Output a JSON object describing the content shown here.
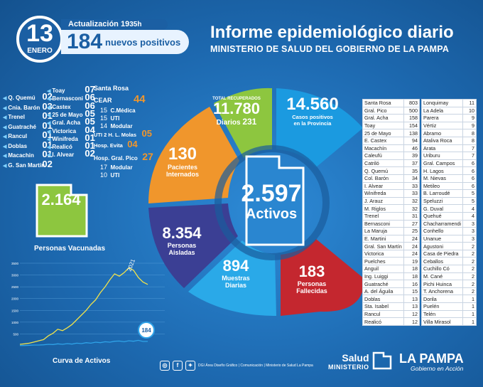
{
  "header": {
    "day": "13",
    "month": "ENERO",
    "update_label": "Actualización",
    "update_hour": "19",
    "update_min": "35h",
    "positives_number": "184",
    "positives_label": "nuevos positivos",
    "title": "Informe epidemiológico diario",
    "subtitle": "MINISTERIO DE SALUD DEL GOBIERNO DE LA PAMPA"
  },
  "left_list": [
    {
      "name": "Q. Quemú",
      "value": "02"
    },
    {
      "name": "Cnia. Barón",
      "value": "03"
    },
    {
      "name": "Trenel",
      "value": "01"
    },
    {
      "name": "Guatraché",
      "value": "01"
    },
    {
      "name": "Rancul",
      "value": "01"
    },
    {
      "name": "Doblas",
      "value": "01"
    },
    {
      "name": "Macachin",
      "value": "01"
    },
    {
      "name": "G. San Martín",
      "value": "02"
    }
  ],
  "mid_list": [
    {
      "name": "Toay",
      "value": "07"
    },
    {
      "name": "Bernasconi",
      "value": "06"
    },
    {
      "name": "Castex",
      "value": "06"
    },
    {
      "name": "25 de Mayo",
      "value": "05"
    },
    {
      "name": "Gral. Acha",
      "value": "05"
    },
    {
      "name": "Victorica",
      "value": "04"
    },
    {
      "name": "Winifreda",
      "value": "01"
    },
    {
      "name": "Realicó",
      "value": "01"
    },
    {
      "name": "I. Alvear",
      "value": "02"
    }
  ],
  "hospitals": {
    "santa_rosa": "Santa Rosa",
    "cear_label": "CEAR",
    "cear_value": "44",
    "cmedica_value": "15",
    "cmedica_label": "C.Médica",
    "uti1_value": "15",
    "uti1_label": "UTI",
    "modular1_value": "14",
    "modular1_label": "Modular",
    "molas_label": "UTI 2 H. L. Molas",
    "molas_value": "05",
    "evita_label": "Hosp. Evita",
    "evita_value": "04",
    "pico_label": "Hosp. Gral. Pico",
    "pico_value": "27",
    "modular2_value": "17",
    "modular2_label": "Modular",
    "uti2_value": "10",
    "uti2_label": "UTI"
  },
  "vaccinated": {
    "number": "2.164",
    "label": "Personas Vacunadas"
  },
  "curve": {
    "label": "Curva de Activos",
    "year_label": "2021",
    "last_value_label": "184"
  },
  "chart_data": {
    "type": "line",
    "title": "Curva de Activos",
    "y_tick_labels": [
      "3500",
      "3000",
      "2500",
      "2000",
      "1500",
      "1000",
      "500"
    ],
    "ylim": [
      0,
      3500
    ],
    "series": [
      {
        "values": [
          60,
          80,
          110,
          160,
          210,
          260,
          420,
          530,
          700,
          640,
          760,
          900,
          1100,
          1300,
          1500,
          1750,
          1950,
          2250,
          2500,
          2800,
          3050,
          2950,
          3100,
          3300,
          3200,
          2900,
          2700,
          2600
        ]
      },
      {
        "values": [
          10,
          10,
          20,
          30,
          30,
          40,
          60,
          50,
          80,
          60,
          90,
          70,
          110,
          90,
          130,
          110,
          150,
          130,
          170,
          150,
          190,
          200,
          170,
          210,
          190,
          230,
          180,
          184
        ]
      }
    ],
    "colors": [
      "#f2e34a",
      "#2fa3e8"
    ]
  },
  "donut": {
    "recovered_label": "TOTAL RECUPERADOS",
    "recovered_total": "11.780",
    "recovered_daily_label": "Diarios",
    "recovered_daily": "231",
    "cases_total": "14.560",
    "cases_label_1": "Casos positivos",
    "cases_label_2": "en la Provincia",
    "hosp_number": "130",
    "hosp_label_1": "Pacientes",
    "hosp_label_2": "Internados",
    "isolated_number": "8.354",
    "isolated_label_1": "Personas",
    "isolated_label_2": "Aisladas",
    "samples_number": "894",
    "samples_label_1": "Muestras",
    "samples_label_2": "Diarias",
    "deaths_number": "183",
    "deaths_label_1": "Personas",
    "deaths_label_2": "Fallecidas",
    "active_number": "2.597",
    "active_label": "Activos",
    "colors": {
      "recovered": "#8dc63f",
      "cases": "#1b9ae0",
      "hosp": "#f0962c",
      "isolated": "#3b3f94",
      "samples": "#2aa9e8",
      "deaths": "#c4272f"
    }
  },
  "table_left": [
    {
      "name": "Santa Rosa",
      "value": "803"
    },
    {
      "name": "Gral. Pico",
      "value": "500"
    },
    {
      "name": "Gral. Acha",
      "value": "158"
    },
    {
      "name": "Toay",
      "value": "154"
    },
    {
      "name": "25 de Mayo",
      "value": "138"
    },
    {
      "name": "E. Castex",
      "value": "94"
    },
    {
      "name": "Macachín",
      "value": "46"
    },
    {
      "name": "Caleufú",
      "value": "39"
    },
    {
      "name": "Catriló",
      "value": "37"
    },
    {
      "name": "Q. Quemú",
      "value": "35"
    },
    {
      "name": "Col. Barón",
      "value": "34"
    },
    {
      "name": "I. Alvear",
      "value": "33"
    },
    {
      "name": "Winifreda",
      "value": "33"
    },
    {
      "name": "J. Arauz",
      "value": "32"
    },
    {
      "name": "M. Riglos",
      "value": "32"
    },
    {
      "name": "Trenel",
      "value": "31"
    },
    {
      "name": "Bernasconi",
      "value": "27"
    },
    {
      "name": "La Maruja",
      "value": "25"
    },
    {
      "name": "E. Martini",
      "value": "24"
    },
    {
      "name": "Gral. San Martín",
      "value": "24"
    },
    {
      "name": "Victorica",
      "value": "24"
    },
    {
      "name": "Puelches",
      "value": "19"
    },
    {
      "name": "Anguil",
      "value": "18"
    },
    {
      "name": "Ing. Luiggi",
      "value": "18"
    },
    {
      "name": "Guatraché",
      "value": "16"
    },
    {
      "name": "A. del Águila",
      "value": "15"
    },
    {
      "name": "Doblas",
      "value": "13"
    },
    {
      "name": "Sta. Isabel",
      "value": "13"
    },
    {
      "name": "Rancul",
      "value": "12"
    },
    {
      "name": "Realicó",
      "value": "12"
    }
  ],
  "table_right": [
    {
      "name": "Lonquimay",
      "value": "11"
    },
    {
      "name": "La Adela",
      "value": "10"
    },
    {
      "name": "Parera",
      "value": "9"
    },
    {
      "name": "Vértiz",
      "value": "9"
    },
    {
      "name": "Abramo",
      "value": "8"
    },
    {
      "name": "Ataliva Roca",
      "value": "8"
    },
    {
      "name": "Arata",
      "value": "7"
    },
    {
      "name": "Uriburu",
      "value": "7"
    },
    {
      "name": "Gral. Campos",
      "value": "6"
    },
    {
      "name": "H. Lagos",
      "value": "6"
    },
    {
      "name": "M. Nievas",
      "value": "6"
    },
    {
      "name": "Metileo",
      "value": "6"
    },
    {
      "name": "B. Larroudé",
      "value": "5"
    },
    {
      "name": "Speluzzi",
      "value": "5"
    },
    {
      "name": "G. Duval",
      "value": "4"
    },
    {
      "name": "Quehué",
      "value": "4"
    },
    {
      "name": "Chacharramendi",
      "value": "3"
    },
    {
      "name": "Conhello",
      "value": "3"
    },
    {
      "name": "Unanue",
      "value": "3"
    },
    {
      "name": "Agustoni",
      "value": "2"
    },
    {
      "name": "Casa de Piedra",
      "value": "2"
    },
    {
      "name": "Ceballos",
      "value": "2"
    },
    {
      "name": "Cuchillo Có",
      "value": "2"
    },
    {
      "name": "M. Cané",
      "value": "2"
    },
    {
      "name": "Pichi Huinca",
      "value": "2"
    },
    {
      "name": "T. Anchorena",
      "value": "2"
    },
    {
      "name": "Dorila",
      "value": "1"
    },
    {
      "name": "Puelén",
      "value": "1"
    },
    {
      "name": "Telén",
      "value": "1"
    },
    {
      "name": "Villa Mirasol",
      "value": "1"
    }
  ],
  "footer": {
    "credits": "DGI Área Diseño Gráfico | Comunicación | Ministerio de Salud La Pampa",
    "salud": "Salud",
    "ministerio": "MINISTERIO",
    "la_pampa": "LA PAMPA",
    "gobierno": "Gobierno en Acción",
    "icons": [
      "instagram-icon",
      "facebook-icon",
      "twitter-icon"
    ]
  }
}
